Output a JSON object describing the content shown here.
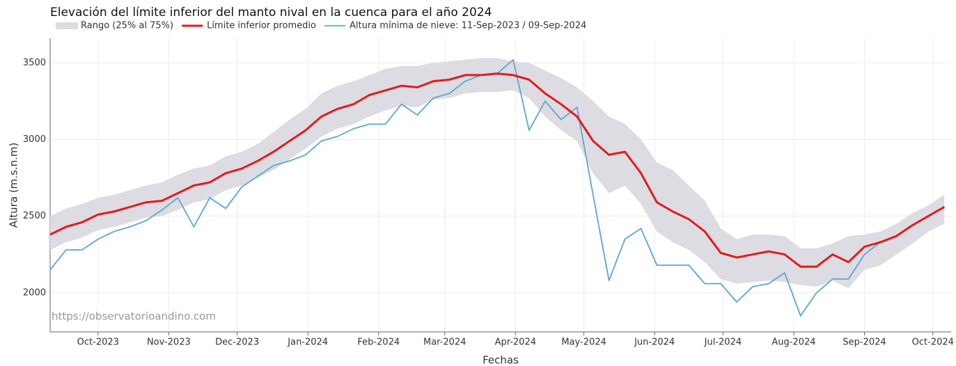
{
  "chart_data": {
    "type": "line",
    "title": "Elevación del límite inferior del manto nival en la cuenca para el año 2024",
    "x_label": "Fechas",
    "y_label": "Altura (m.s.n.m)",
    "watermark": "https://observatorioandino.com",
    "x": [
      "2023-09-10",
      "2023-09-17",
      "2023-09-24",
      "2023-10-01",
      "2023-10-08",
      "2023-10-15",
      "2023-10-22",
      "2023-10-29",
      "2023-11-05",
      "2023-11-12",
      "2023-11-19",
      "2023-11-26",
      "2023-12-03",
      "2023-12-10",
      "2023-12-17",
      "2023-12-24",
      "2023-12-31",
      "2024-01-07",
      "2024-01-14",
      "2024-01-21",
      "2024-01-28",
      "2024-02-04",
      "2024-02-11",
      "2024-02-18",
      "2024-02-25",
      "2024-03-03",
      "2024-03-10",
      "2024-03-17",
      "2024-03-24",
      "2024-03-31",
      "2024-04-07",
      "2024-04-14",
      "2024-04-21",
      "2024-04-28",
      "2024-05-05",
      "2024-05-12",
      "2024-05-19",
      "2024-05-26",
      "2024-06-02",
      "2024-06-09",
      "2024-06-16",
      "2024-06-23",
      "2024-06-30",
      "2024-07-07",
      "2024-07-14",
      "2024-07-21",
      "2024-07-28",
      "2024-08-04",
      "2024-08-11",
      "2024-08-18",
      "2024-08-25",
      "2024-09-01",
      "2024-09-08",
      "2024-09-15",
      "2024-09-22",
      "2024-09-29",
      "2024-10-06"
    ],
    "band": {
      "name": "Rango (25% al 75%)",
      "color": "#dcdce2",
      "low": [
        2280,
        2330,
        2360,
        2410,
        2430,
        2460,
        2490,
        2500,
        2540,
        2590,
        2610,
        2670,
        2700,
        2750,
        2800,
        2870,
        2940,
        3020,
        3070,
        3100,
        3150,
        3190,
        3220,
        3210,
        3260,
        3270,
        3300,
        3310,
        3310,
        3320,
        3270,
        3150,
        3060,
        2990,
        2780,
        2650,
        2700,
        2580,
        2400,
        2330,
        2280,
        2200,
        2090,
        2060,
        2070,
        2080,
        2070,
        2050,
        2040,
        2080,
        2030,
        2150,
        2180,
        2250,
        2320,
        2400,
        2450
      ],
      "high": [
        2500,
        2550,
        2580,
        2620,
        2640,
        2670,
        2700,
        2720,
        2770,
        2810,
        2830,
        2890,
        2920,
        2970,
        3050,
        3130,
        3200,
        3300,
        3350,
        3380,
        3420,
        3460,
        3480,
        3480,
        3500,
        3510,
        3520,
        3530,
        3530,
        3510,
        3500,
        3450,
        3400,
        3340,
        3250,
        3150,
        3100,
        3000,
        2850,
        2800,
        2700,
        2600,
        2420,
        2350,
        2380,
        2380,
        2370,
        2290,
        2290,
        2320,
        2370,
        2380,
        2400,
        2450,
        2520,
        2570,
        2640
      ]
    },
    "series": [
      {
        "name": "Límite inferior promedio",
        "color": "#e31a1c",
        "width": 3,
        "values": [
          2380,
          2430,
          2460,
          2510,
          2530,
          2560,
          2590,
          2600,
          2650,
          2700,
          2720,
          2780,
          2810,
          2860,
          2920,
          2990,
          3060,
          3150,
          3200,
          3230,
          3290,
          3320,
          3350,
          3340,
          3380,
          3390,
          3420,
          3420,
          3430,
          3420,
          3390,
          3300,
          3230,
          3150,
          2990,
          2900,
          2920,
          2780,
          2590,
          2530,
          2480,
          2400,
          2260,
          2230,
          2250,
          2270,
          2250,
          2170,
          2170,
          2250,
          2200,
          2300,
          2330,
          2370,
          2440,
          2500,
          2560
        ]
      },
      {
        "name": "Altura mínima de nieve: 11-Sep-2023 / 09-Sep-2024",
        "color": "#5aa6d6",
        "width": 1.8,
        "values": [
          2150,
          2280,
          2280,
          2350,
          2400,
          2430,
          2470,
          2540,
          2620,
          2430,
          2620,
          2550,
          2690,
          2760,
          2830,
          2860,
          2900,
          2990,
          3020,
          3070,
          3100,
          3100,
          3230,
          3160,
          3270,
          3300,
          3380,
          3420,
          3430,
          3520,
          3060,
          3250,
          3130,
          3210,
          2640,
          2080,
          2350,
          2420,
          2180,
          2180,
          2180,
          2060,
          2060,
          1940,
          2040,
          2060,
          2130,
          1850,
          2000,
          2090,
          2090,
          2250,
          2330,
          null,
          null,
          null,
          null
        ]
      }
    ],
    "xlim": [
      "2023-09-10",
      "2024-10-09"
    ],
    "xticks": [
      {
        "value": "2023-10-01",
        "label": "Oct-2023"
      },
      {
        "value": "2023-11-01",
        "label": "Nov-2023"
      },
      {
        "value": "2023-12-01",
        "label": "Dec-2023"
      },
      {
        "value": "2024-01-01",
        "label": "Jan-2024"
      },
      {
        "value": "2024-02-01",
        "label": "Feb-2024"
      },
      {
        "value": "2024-03-01",
        "label": "Mar-2024"
      },
      {
        "value": "2024-04-01",
        "label": "Apr-2024"
      },
      {
        "value": "2024-05-01",
        "label": "May-2024"
      },
      {
        "value": "2024-06-01",
        "label": "Jun-2024"
      },
      {
        "value": "2024-07-01",
        "label": "Jul-2024"
      },
      {
        "value": "2024-08-01",
        "label": "Aug-2024"
      },
      {
        "value": "2024-09-01",
        "label": "Sep-2024"
      },
      {
        "value": "2024-10-01",
        "label": "Oct-2024"
      }
    ],
    "ylim": [
      1745,
      3660
    ],
    "yticks": [
      2000,
      2500,
      3000,
      3500
    ],
    "grid": true
  }
}
